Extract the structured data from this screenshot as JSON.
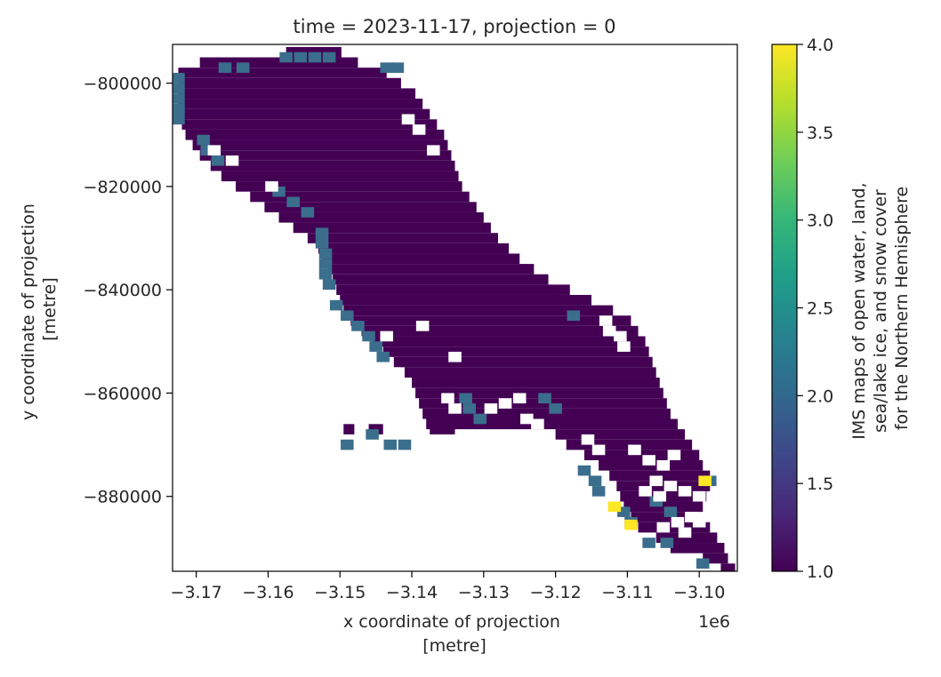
{
  "chart_data": {
    "type": "heatmap",
    "title": "time = 2023-11-17, projection = 0",
    "xlabel_lines": [
      "x coordinate of projection",
      "[metre]"
    ],
    "ylabel_lines": [
      "y coordinate of projection",
      "[metre]"
    ],
    "x_offset_label": "1e6",
    "xlim": [
      -3.1733,
      -3.0947
    ],
    "ylim": [
      -894500,
      -792500
    ],
    "x_ticks": [
      -3.17,
      -3.16,
      -3.15,
      -3.14,
      -3.13,
      -3.12,
      -3.11,
      -3.1
    ],
    "x_tick_labels": [
      "−3.17",
      "−3.16",
      "−3.15",
      "−3.14",
      "−3.13",
      "−3.12",
      "−3.11",
      "−3.10"
    ],
    "y_ticks": [
      -800000,
      -820000,
      -840000,
      -860000,
      -880000
    ],
    "y_tick_labels": [
      "−800000",
      "−820000",
      "−840000",
      "−860000",
      "−880000"
    ],
    "colorbar": {
      "label_lines": [
        "IMS maps of open water, land,",
        "sea/lake ice, and snow cover",
        "for the Northern Hemisphere"
      ],
      "min": 1.0,
      "max": 4.0,
      "ticks": [
        1.0,
        1.5,
        2.0,
        2.5,
        3.0,
        3.5,
        4.0
      ],
      "tick_labels": [
        "1.0",
        "1.5",
        "2.0",
        "2.5",
        "3.0",
        "3.5",
        "4.0"
      ],
      "colormap": "viridis"
    },
    "value_colors": {
      "1": "#440154",
      "2": "#3b6e8c",
      "4": "#fde725"
    },
    "grid": false,
    "note": "",
    "land_band_rows": [
      [
        -794000,
        -3.1575,
        -3.1498
      ],
      [
        -796000,
        -3.1695,
        -3.1475
      ],
      [
        -798000,
        -3.1725,
        -3.1435
      ],
      [
        -800000,
        -3.1725,
        -3.1415
      ],
      [
        -802000,
        -3.1725,
        -3.1395
      ],
      [
        -804000,
        -3.1725,
        -3.1385
      ],
      [
        -806000,
        -3.1725,
        -3.1375
      ],
      [
        -808000,
        -3.172,
        -3.1365
      ],
      [
        -810000,
        -3.1715,
        -3.1355
      ],
      [
        -812000,
        -3.1705,
        -3.135
      ],
      [
        -814000,
        -3.1695,
        -3.1345
      ],
      [
        -816000,
        -3.168,
        -3.134
      ],
      [
        -818000,
        -3.1665,
        -3.1335
      ],
      [
        -820000,
        -3.1645,
        -3.133
      ],
      [
        -822000,
        -3.1625,
        -3.132
      ],
      [
        -824000,
        -3.1605,
        -3.131
      ],
      [
        -826000,
        -3.1585,
        -3.13
      ],
      [
        -828000,
        -3.1565,
        -3.129
      ],
      [
        -830000,
        -3.1545,
        -3.128
      ],
      [
        -832000,
        -3.153,
        -3.1265
      ],
      [
        -834000,
        -3.1525,
        -3.125
      ],
      [
        -836000,
        -3.1515,
        -3.123
      ],
      [
        -838000,
        -3.151,
        -3.121
      ],
      [
        -840000,
        -3.1505,
        -3.118
      ],
      [
        -842000,
        -3.15,
        -3.115
      ],
      [
        -844000,
        -3.1495,
        -3.112
      ],
      [
        -846000,
        -3.1485,
        -3.1095
      ],
      [
        -848000,
        -3.147,
        -3.1085
      ],
      [
        -850000,
        -3.1455,
        -3.1075
      ],
      [
        -852000,
        -3.144,
        -3.107
      ],
      [
        -854000,
        -3.1425,
        -3.1065
      ],
      [
        -856000,
        -3.141,
        -3.106
      ],
      [
        -858000,
        -3.14,
        -3.1055
      ],
      [
        -860000,
        -3.1395,
        -3.105
      ],
      [
        -862000,
        -3.139,
        -3.1045
      ],
      [
        -864000,
        -3.1385,
        -3.104
      ],
      [
        -866000,
        -3.138,
        -3.103
      ],
      [
        -868000,
        -3.12,
        -3.102
      ],
      [
        -870000,
        -3.1185,
        -3.101
      ],
      [
        -872000,
        -3.116,
        -3.1
      ],
      [
        -874000,
        -3.114,
        -3.0995
      ],
      [
        -876000,
        -3.1125,
        -3.0985
      ],
      [
        -878000,
        -3.1115,
        -3.0985
      ],
      [
        -880000,
        -3.111,
        -3.099
      ],
      [
        -882000,
        -3.1105,
        -3.0995
      ],
      [
        -884000,
        -3.1095,
        -3.102
      ],
      [
        -886000,
        -3.1085,
        -3.0985
      ],
      [
        -888000,
        -3.106,
        -3.0975
      ],
      [
        -890000,
        -3.104,
        -3.0965
      ],
      [
        -892000,
        -3.0995,
        -3.096
      ],
      [
        -894000,
        -3.097,
        -3.095
      ]
    ],
    "land_extra_blocks": [
      [
        -3.1375,
        -3.134,
        -864000,
        -868000
      ],
      [
        -3.146,
        -3.144,
        -866000,
        -868000
      ],
      [
        -3.1495,
        -3.148,
        -866000,
        -868000
      ],
      [
        -3.133,
        -3.13,
        -864000,
        -866000
      ],
      [
        -3.1265,
        -3.124,
        -864000,
        -866000
      ]
    ],
    "value_2_cells": [
      [
        -3.1725,
        -799000
      ],
      [
        -3.1725,
        -801000
      ],
      [
        -3.1725,
        -803000
      ],
      [
        -3.1725,
        -805000
      ],
      [
        -3.1725,
        -807000
      ],
      [
        -3.169,
        -811000
      ],
      [
        -3.1685,
        -813000
      ],
      [
        -3.167,
        -815000
      ],
      [
        -3.1575,
        -795000
      ],
      [
        -3.1555,
        -795000
      ],
      [
        -3.1535,
        -795000
      ],
      [
        -3.1515,
        -795000
      ],
      [
        -3.166,
        -797000
      ],
      [
        -3.1635,
        -797000
      ],
      [
        -3.1435,
        -797000
      ],
      [
        -3.142,
        -797000
      ],
      [
        -3.1585,
        -821000
      ],
      [
        -3.1565,
        -823000
      ],
      [
        -3.1545,
        -825000
      ],
      [
        -3.1525,
        -829000
      ],
      [
        -3.1525,
        -831000
      ],
      [
        -3.152,
        -833000
      ],
      [
        -3.152,
        -835000
      ],
      [
        -3.152,
        -837000
      ],
      [
        -3.1515,
        -839000
      ],
      [
        -3.1505,
        -843000
      ],
      [
        -3.149,
        -845000
      ],
      [
        -3.1475,
        -847000
      ],
      [
        -3.146,
        -849000
      ],
      [
        -3.145,
        -851000
      ],
      [
        -3.144,
        -853000
      ],
      [
        -3.1325,
        -861000
      ],
      [
        -3.132,
        -863000
      ],
      [
        -3.1305,
        -865000
      ],
      [
        -3.1215,
        -861000
      ],
      [
        -3.12,
        -863000
      ],
      [
        -3.116,
        -875000
      ],
      [
        -3.1145,
        -877000
      ],
      [
        -3.114,
        -879000
      ],
      [
        -3.1105,
        -883000
      ],
      [
        -3.1095,
        -885000
      ],
      [
        -3.107,
        -889000
      ],
      [
        -3.1045,
        -889000
      ],
      [
        -3.0995,
        -893000
      ],
      [
        -3.106,
        -881000
      ],
      [
        -3.104,
        -883000
      ],
      [
        -3.1455,
        -868000
      ],
      [
        -3.143,
        -870000
      ],
      [
        -3.141,
        -870000
      ],
      [
        -3.149,
        -870000
      ],
      [
        -3.1175,
        -845000
      ],
      [
        -3.0985,
        -877000
      ]
    ],
    "value_4_cells": [
      [
        -3.0992,
        -877000
      ],
      [
        -3.1118,
        -882000
      ],
      [
        -3.1095,
        -885500
      ]
    ],
    "nodata_cells": [
      [
        -3.1675,
        -813000
      ],
      [
        -3.165,
        -815000
      ],
      [
        -3.1595,
        -820000
      ],
      [
        -3.1455,
        -860000
      ],
      [
        -3.144,
        -858000
      ],
      [
        -3.1425,
        -856000
      ],
      [
        -3.141,
        -862000
      ],
      [
        -3.143,
        -862000
      ],
      [
        -3.1395,
        -864000
      ],
      [
        -3.135,
        -861000
      ],
      [
        -3.134,
        -863000
      ],
      [
        -3.129,
        -863000
      ],
      [
        -3.127,
        -862000
      ],
      [
        -3.125,
        -861000
      ],
      [
        -3.124,
        -865000
      ],
      [
        -3.1225,
        -866000
      ],
      [
        -3.1155,
        -869000
      ],
      [
        -3.114,
        -871000
      ],
      [
        -3.113,
        -846000
      ],
      [
        -3.1125,
        -848000
      ],
      [
        -3.111,
        -849000
      ],
      [
        -3.1105,
        -851000
      ],
      [
        -3.1385,
        -847000
      ],
      [
        -3.1435,
        -849000
      ],
      [
        -3.134,
        -853000
      ],
      [
        -3.109,
        -871000
      ],
      [
        -3.107,
        -873000
      ],
      [
        -3.105,
        -874000
      ],
      [
        -3.1035,
        -872000
      ],
      [
        -3.106,
        -877000
      ],
      [
        -3.104,
        -878000
      ],
      [
        -3.102,
        -879000
      ],
      [
        -3.1,
        -880000
      ],
      [
        -3.1075,
        -879000
      ],
      [
        -3.1055,
        -880000
      ],
      [
        -3.101,
        -884000
      ],
      [
        -3.103,
        -885000
      ],
      [
        -3.105,
        -886000
      ],
      [
        -3.1,
        -885000
      ],
      [
        -3.102,
        -887000
      ],
      [
        -3.1405,
        -807000
      ],
      [
        -3.139,
        -809000
      ],
      [
        -3.137,
        -813000
      ]
    ]
  }
}
